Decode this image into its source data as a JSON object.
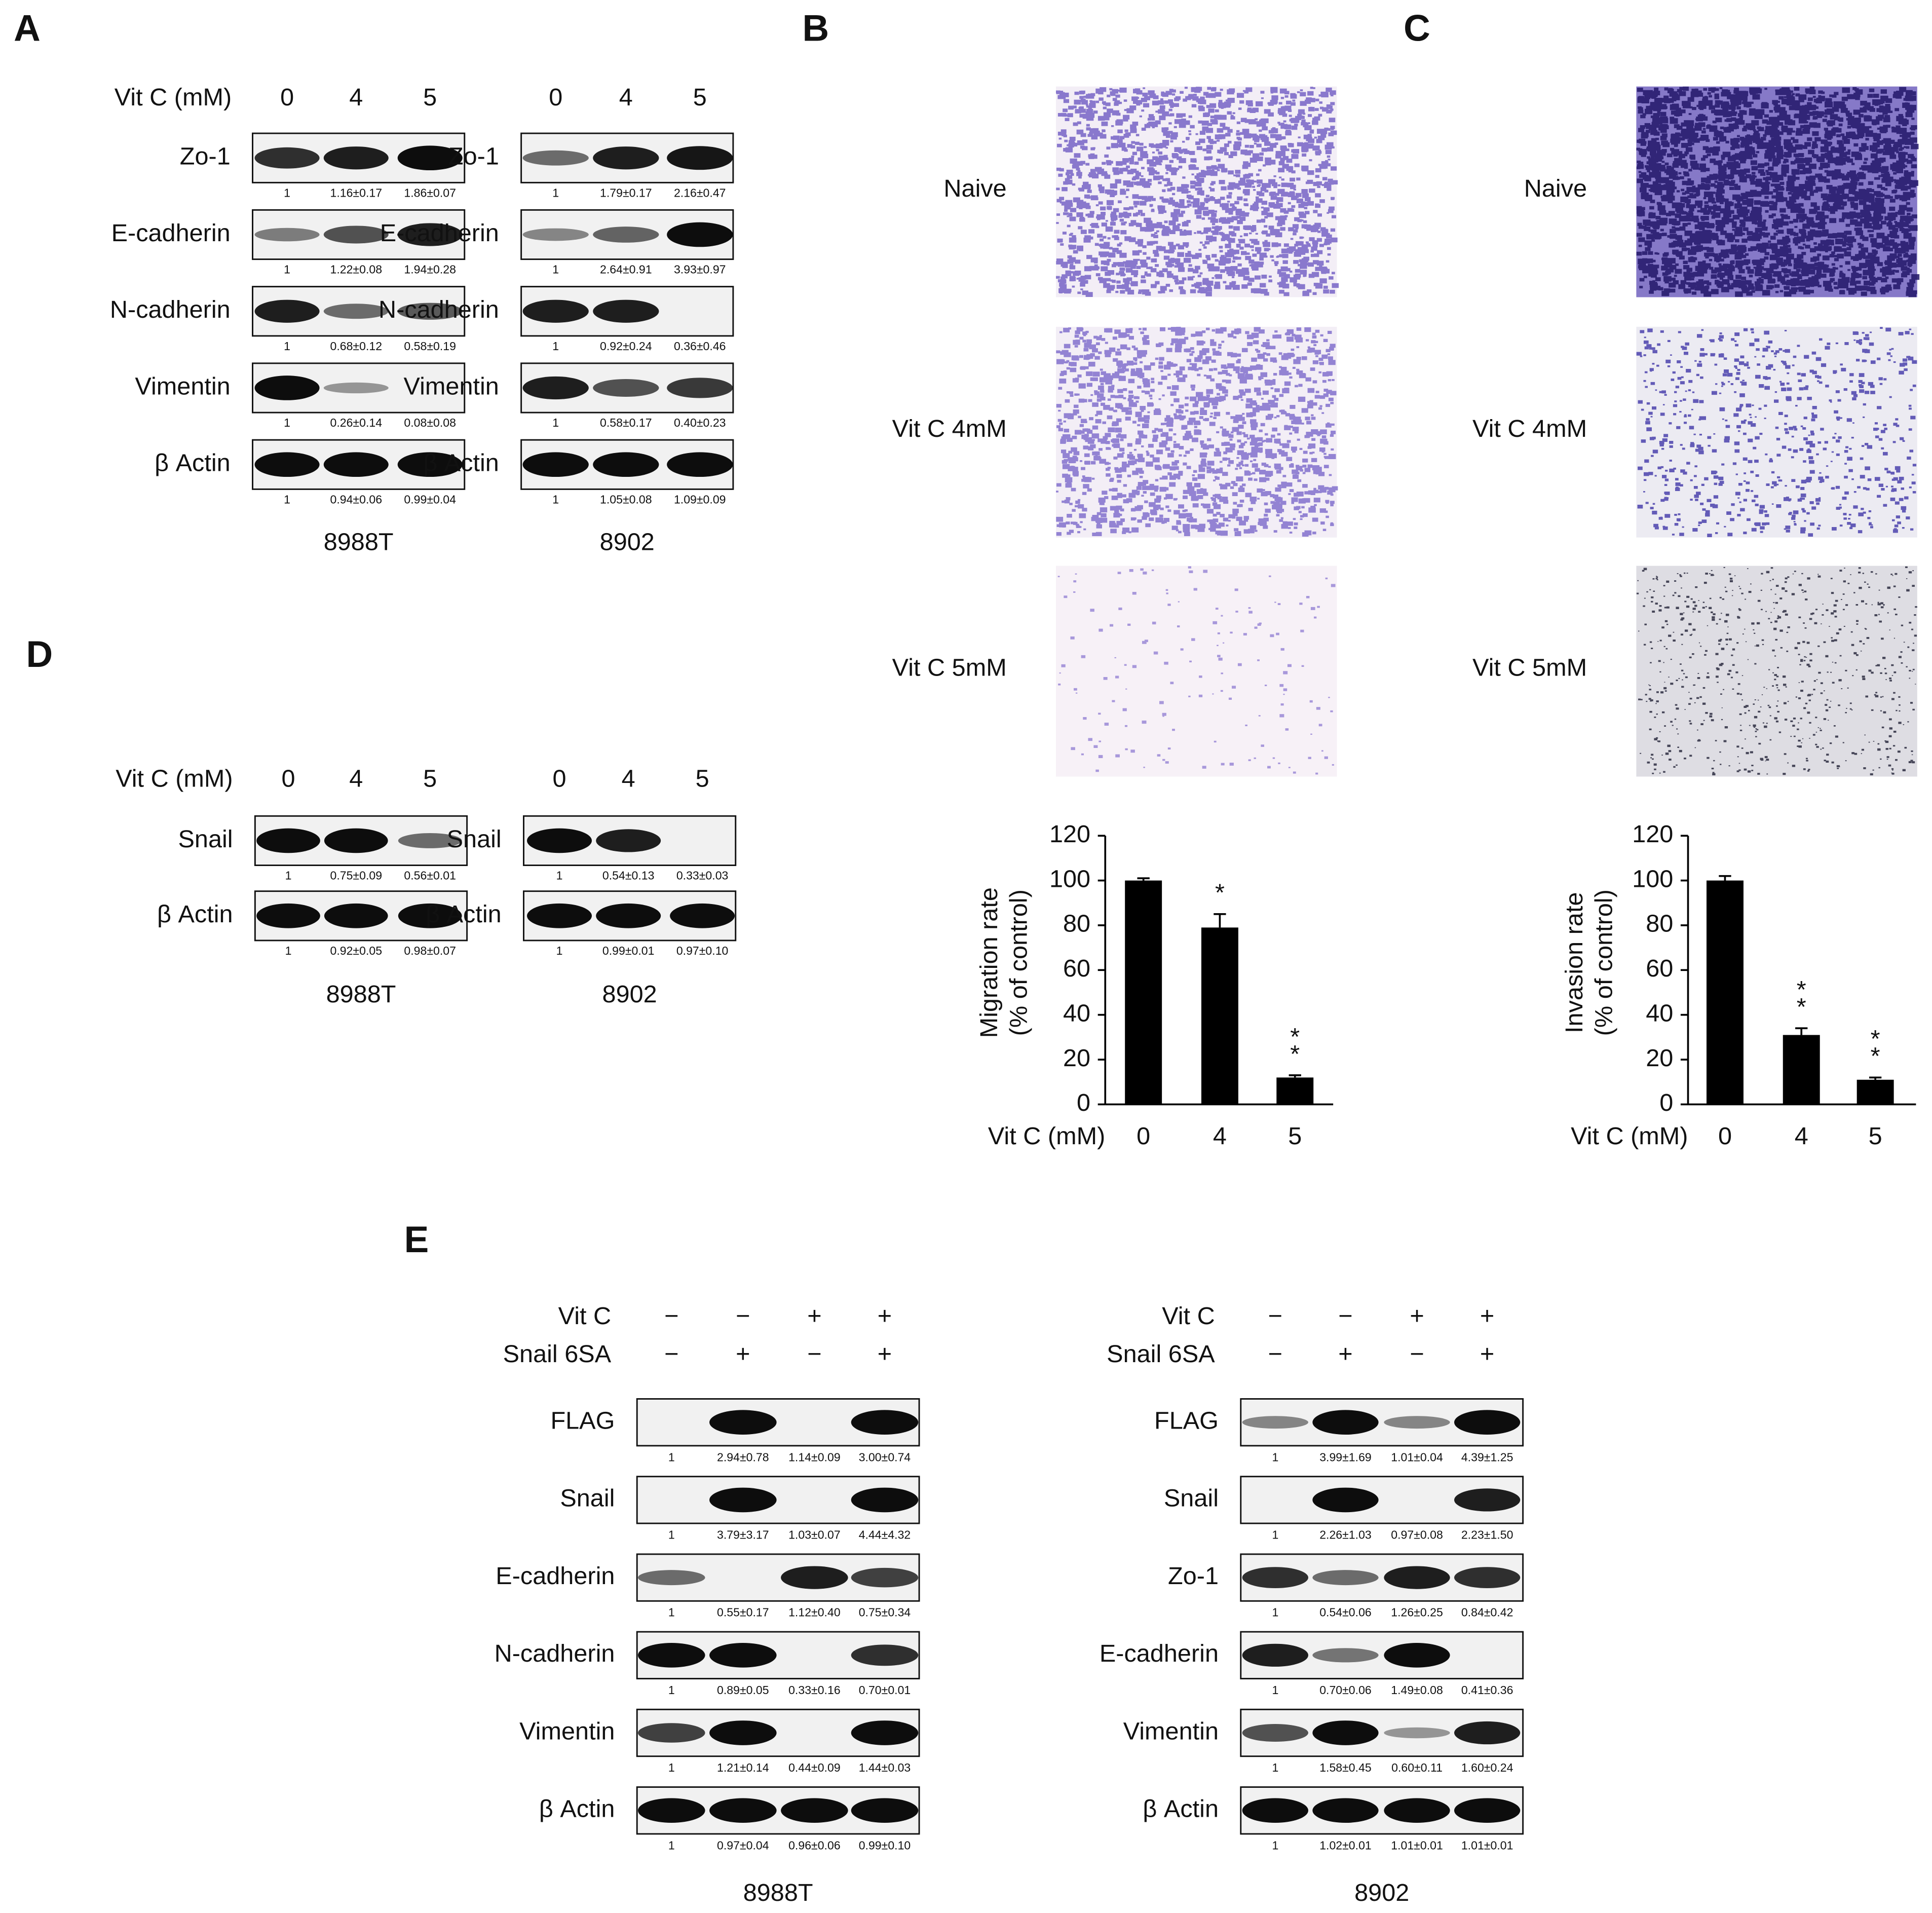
{
  "panel_labels": [
    "A",
    "B",
    "C",
    "D",
    "E"
  ],
  "panel_a": {
    "treatment": "Vit C (mM)",
    "doses": [
      "0",
      "4",
      "5"
    ],
    "blots": [
      {
        "cell_line": "8988T",
        "rows": [
          {
            "protein": "Zo-1",
            "quant": [
              "1",
              "1.16±0.17",
              "1.86±0.07"
            ]
          },
          {
            "protein": "E-cadherin",
            "quant": [
              "1",
              "1.22±0.08",
              "1.94±0.28"
            ]
          },
          {
            "protein": "N-cadherin",
            "quant": [
              "1",
              "0.68±0.12",
              "0.58±0.19"
            ]
          },
          {
            "protein": "Vimentin",
            "quant": [
              "1",
              "0.26±0.14",
              "0.08±0.08"
            ]
          },
          {
            "protein": "β Actin",
            "quant": [
              "1",
              "0.94±0.06",
              "0.99±0.04"
            ]
          }
        ]
      },
      {
        "cell_line": "8902",
        "rows": [
          {
            "protein": "Zo-1",
            "quant": [
              "1",
              "1.79±0.17",
              "2.16±0.47"
            ]
          },
          {
            "protein": "E-cadherin",
            "quant": [
              "1",
              "2.64±0.91",
              "3.93±0.97"
            ]
          },
          {
            "protein": "N-cadherin",
            "quant": [
              "1",
              "0.92±0.24",
              "0.36±0.46"
            ]
          },
          {
            "protein": "Vimentin",
            "quant": [
              "1",
              "0.58±0.17",
              "0.40±0.23"
            ]
          },
          {
            "protein": "β Actin",
            "quant": [
              "1",
              "1.05±0.08",
              "1.09±0.09"
            ]
          }
        ]
      }
    ]
  },
  "panel_b": {
    "conditions": [
      "Naive",
      "Vit C 4mM",
      "Vit C 5mM"
    ]
  },
  "panel_c": {
    "conditions": [
      "Naive",
      "Vit C 4mM",
      "Vit C 5mM"
    ]
  },
  "panel_d": {
    "treatment": "Vit C (mM)",
    "doses": [
      "0",
      "4",
      "5"
    ],
    "blots": [
      {
        "cell_line": "8988T",
        "rows": [
          {
            "protein": "Snail",
            "quant": [
              "1",
              "0.75±0.09",
              "0.56±0.01"
            ]
          },
          {
            "protein": "β Actin",
            "quant": [
              "1",
              "0.92±0.05",
              "0.98±0.07"
            ]
          }
        ]
      },
      {
        "cell_line": "8902",
        "rows": [
          {
            "protein": "Snail",
            "quant": [
              "1",
              "0.54±0.13",
              "0.33±0.03"
            ]
          },
          {
            "protein": "β Actin",
            "quant": [
              "1",
              "0.99±0.01",
              "0.97±0.10"
            ]
          }
        ]
      }
    ]
  },
  "panel_e": {
    "treatments": [
      {
        "name": "Vit C",
        "signs": [
          "−",
          "−",
          "+",
          "+"
        ]
      },
      {
        "name": "Snail 6SA",
        "signs": [
          "−",
          "+",
          "−",
          "+"
        ]
      }
    ],
    "blots": [
      {
        "cell_line": "8988T",
        "rows": [
          {
            "protein": "FLAG",
            "quant": [
              "1",
              "2.94±0.78",
              "1.14±0.09",
              "3.00±0.74"
            ]
          },
          {
            "protein": "Snail",
            "quant": [
              "1",
              "3.79±3.17",
              "1.03±0.07",
              "4.44±4.32"
            ]
          },
          {
            "protein": "E-cadherin",
            "quant": [
              "1",
              "0.55±0.17",
              "1.12±0.40",
              "0.75±0.34"
            ]
          },
          {
            "protein": "N-cadherin",
            "quant": [
              "1",
              "0.89±0.05",
              "0.33±0.16",
              "0.70±0.01"
            ]
          },
          {
            "protein": "Vimentin",
            "quant": [
              "1",
              "1.21±0.14",
              "0.44±0.09",
              "1.44±0.03"
            ]
          },
          {
            "protein": "β Actin",
            "quant": [
              "1",
              "0.97±0.04",
              "0.96±0.06",
              "0.99±0.10"
            ]
          }
        ]
      },
      {
        "cell_line": "8902",
        "rows": [
          {
            "protein": "FLAG",
            "quant": [
              "1",
              "3.99±1.69",
              "1.01±0.04",
              "4.39±1.25"
            ]
          },
          {
            "protein": "Snail",
            "quant": [
              "1",
              "2.26±1.03",
              "0.97±0.08",
              "2.23±1.50"
            ]
          },
          {
            "protein": "Zo-1",
            "quant": [
              "1",
              "0.54±0.06",
              "1.26±0.25",
              "0.84±0.42"
            ]
          },
          {
            "protein": "E-cadherin",
            "quant": [
              "1",
              "0.70±0.06",
              "1.49±0.08",
              "0.41±0.36"
            ]
          },
          {
            "protein": "Vimentin",
            "quant": [
              "1",
              "1.58±0.45",
              "0.60±0.11",
              "1.60±0.24"
            ]
          },
          {
            "protein": "β Actin",
            "quant": [
              "1",
              "1.02±0.01",
              "1.01±0.01",
              "1.01±0.01"
            ]
          }
        ]
      }
    ]
  },
  "chart_data": [
    {
      "type": "bar",
      "ylabel": [
        "Migration rate",
        "(% of control)"
      ],
      "xlabel": "Vit C (mM)",
      "categories": [
        "0",
        "4",
        "5"
      ],
      "values": [
        100,
        79,
        12
      ],
      "errors": [
        1,
        6,
        1
      ],
      "significance": [
        null,
        [
          "*"
        ],
        [
          "*",
          "*"
        ]
      ],
      "color": "#000000",
      "ylim": [
        0,
        120
      ],
      "yticks": [
        0,
        20,
        40,
        60,
        80,
        100,
        120
      ]
    },
    {
      "type": "bar",
      "ylabel": [
        "Invasion rate",
        "(% of control)"
      ],
      "xlabel": "Vit C (mM)",
      "categories": [
        "0",
        "4",
        "5"
      ],
      "values": [
        100,
        31,
        11
      ],
      "errors": [
        2,
        3,
        1
      ],
      "significance": [
        null,
        [
          "*",
          "*"
        ],
        [
          "*",
          "*"
        ]
      ],
      "color": "#000000",
      "ylim": [
        0,
        120
      ],
      "yticks": [
        0,
        20,
        40,
        60,
        80,
        100,
        120
      ]
    }
  ]
}
